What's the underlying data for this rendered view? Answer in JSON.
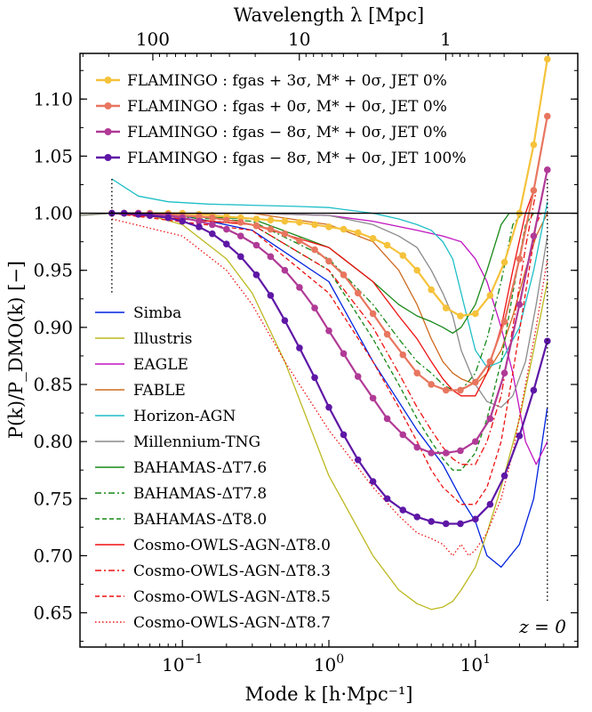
{
  "chart_data": {
    "type": "line",
    "title": "",
    "xlabel": "Mode k [h·Mpc⁻¹]",
    "ylabel": "P(k)/P_DMO(k) [−]",
    "top_xlabel": "Wavelength λ [Mpc]",
    "xscale": "log",
    "xlim": [
      0.02,
      50
    ],
    "ylim": [
      0.62,
      1.14
    ],
    "yticks": [
      "0.65",
      "0.70",
      "0.75",
      "0.80",
      "0.85",
      "0.90",
      "0.95",
      "1.00",
      "1.05",
      "1.10"
    ],
    "xticks": [
      {
        "base": "10",
        "exp": "−1",
        "value": 0.1
      },
      {
        "base": "10",
        "exp": "0",
        "value": 1
      },
      {
        "base": "10",
        "exp": "1",
        "value": 10
      }
    ],
    "top_ticks": [
      {
        "label": "100",
        "lambda": 100
      },
      {
        "label": "10",
        "lambda": 10
      },
      {
        "label": "1",
        "lambda": 1
      }
    ],
    "annotation": "z = 0",
    "reference_line": 1.0,
    "vlines_k": [
      0.033,
      31
    ],
    "legend_top": [
      {
        "label": "FLAMINGO :  fgas + 3σ, M* + 0σ, JET 0%",
        "color": "#f5c23b"
      },
      {
        "label": "FLAMINGO :  fgas + 0σ, M* + 0σ, JET 0%",
        "color": "#e8765f"
      },
      {
        "label": "FLAMINGO :  fgas − 8σ, M* + 0σ, JET 0%",
        "color": "#b03a96"
      },
      {
        "label": "FLAMINGO :  fgas − 8σ, M* + 0σ, JET 100%",
        "color": "#5e17a6"
      }
    ],
    "legend_bottom": [
      {
        "label": "Simba",
        "color": "#0022dd",
        "dash": ""
      },
      {
        "label": "Illustris",
        "color": "#bdb81f",
        "dash": ""
      },
      {
        "label": "EAGLE",
        "color": "#c015c0",
        "dash": ""
      },
      {
        "label": "FABLE",
        "color": "#cf6b1f",
        "dash": ""
      },
      {
        "label": "Horizon-AGN",
        "color": "#1ebec7",
        "dash": ""
      },
      {
        "label": "Millennium-TNG",
        "color": "#8a8a8a",
        "dash": ""
      },
      {
        "label": "BAHAMAS-ΔT7.6",
        "color": "#178817",
        "dash": ""
      },
      {
        "label": "BAHAMAS-ΔT7.8",
        "color": "#178817",
        "dash": "7,3,2,3"
      },
      {
        "label": "BAHAMAS-ΔT8.0",
        "color": "#178817",
        "dash": "5,3"
      },
      {
        "label": "Cosmo-OWLS-AGN-ΔT8.0",
        "color": "#ee1111",
        "dash": ""
      },
      {
        "label": "Cosmo-OWLS-AGN-ΔT8.3",
        "color": "#ee1111",
        "dash": "7,3,2,3"
      },
      {
        "label": "Cosmo-OWLS-AGN-ΔT8.5",
        "color": "#ee1111",
        "dash": "5,3"
      },
      {
        "label": "Cosmo-OWLS-AGN-ΔT8.7",
        "color": "#ee1111",
        "dash": "1.5,2.5"
      }
    ],
    "series": [
      {
        "name": "Simba",
        "color": "#0022dd",
        "dash": "",
        "width": 1.3,
        "x": [
          0.033,
          0.1,
          0.3,
          1,
          2,
          4,
          6,
          8,
          10,
          12,
          15,
          20,
          25,
          31
        ],
        "y": [
          1.0,
          0.998,
          0.985,
          0.94,
          0.87,
          0.81,
          0.78,
          0.75,
          0.73,
          0.7,
          0.69,
          0.71,
          0.75,
          0.83
        ]
      },
      {
        "name": "Illustris",
        "color": "#bdb81f",
        "dash": "",
        "width": 1.3,
        "x": [
          0.02,
          0.033,
          0.06,
          0.1,
          0.2,
          0.3,
          0.5,
          1,
          2,
          3,
          4,
          5,
          6,
          7,
          8,
          10,
          12,
          15,
          20,
          25,
          31
        ],
        "y": [
          0.998,
          1.0,
          0.998,
          0.99,
          0.96,
          0.93,
          0.87,
          0.77,
          0.7,
          0.67,
          0.658,
          0.653,
          0.655,
          0.66,
          0.67,
          0.69,
          0.72,
          0.76,
          0.82,
          0.88,
          0.94
        ]
      },
      {
        "name": "EAGLE",
        "color": "#c015c0",
        "dash": "",
        "width": 1.3,
        "x": [
          0.033,
          0.3,
          1,
          2,
          4,
          6,
          8,
          10,
          12,
          15,
          18,
          22,
          26,
          31
        ],
        "y": [
          1.0,
          1.0,
          0.998,
          0.993,
          0.985,
          0.98,
          0.975,
          0.96,
          0.94,
          0.9,
          0.86,
          0.8,
          0.78,
          0.8
        ]
      },
      {
        "name": "FABLE",
        "color": "#cf6b1f",
        "dash": "",
        "width": 1.3,
        "x": [
          0.033,
          0.3,
          1,
          2,
          3,
          4,
          5,
          6,
          7,
          8,
          10,
          12,
          15,
          18,
          22,
          26,
          31
        ],
        "y": [
          1.0,
          1.0,
          0.99,
          0.975,
          0.95,
          0.92,
          0.89,
          0.87,
          0.86,
          0.855,
          0.85,
          0.86,
          0.88,
          0.91,
          0.95,
          0.98,
          1.0
        ]
      },
      {
        "name": "Horizon-AGN",
        "color": "#1ebec7",
        "dash": "",
        "width": 1.3,
        "x": [
          0.033,
          0.05,
          0.08,
          0.15,
          0.3,
          0.6,
          1,
          2,
          3,
          4,
          5,
          6,
          7,
          8,
          10,
          12,
          15,
          20,
          25,
          31
        ],
        "y": [
          1.03,
          1.015,
          1.01,
          1.008,
          1.007,
          1.006,
          1.005,
          1.0,
          0.995,
          0.99,
          0.985,
          0.975,
          0.96,
          0.93,
          0.88,
          0.865,
          0.87,
          0.9,
          0.95,
          1.01
        ]
      },
      {
        "name": "Millennium-TNG",
        "color": "#8a8a8a",
        "dash": "",
        "width": 1.3,
        "x": [
          0.02,
          0.033,
          0.3,
          1,
          2,
          3,
          4,
          5,
          6,
          7,
          8,
          10,
          12,
          15,
          18,
          22,
          26,
          31
        ],
        "y": [
          0.998,
          1.0,
          1.0,
          0.998,
          0.99,
          0.98,
          0.97,
          0.95,
          0.93,
          0.91,
          0.88,
          0.85,
          0.835,
          0.83,
          0.84,
          0.87,
          0.92,
          0.98
        ]
      },
      {
        "name": "BAHAMAS-ΔT7.6",
        "color": "#178817",
        "dash": "",
        "width": 1.3,
        "x": [
          0.033,
          0.3,
          1,
          2,
          3,
          4,
          5,
          6,
          7,
          8,
          10,
          12,
          15,
          17,
          19
        ],
        "y": [
          1.0,
          0.995,
          0.97,
          0.94,
          0.92,
          0.91,
          0.905,
          0.9,
          0.895,
          0.9,
          0.92,
          0.95,
          0.99,
          1.0,
          1.0
        ]
      },
      {
        "name": "BAHAMAS-ΔT7.8",
        "color": "#178817",
        "dash": "7,3,2,3",
        "width": 1.3,
        "x": [
          0.033,
          0.3,
          1,
          2,
          3,
          4,
          5,
          6,
          7,
          8,
          10,
          12,
          15,
          18,
          21
        ],
        "y": [
          1.0,
          0.993,
          0.96,
          0.92,
          0.89,
          0.87,
          0.86,
          0.85,
          0.845,
          0.845,
          0.86,
          0.89,
          0.94,
          0.99,
          1.0
        ]
      },
      {
        "name": "BAHAMAS-ΔT8.0",
        "color": "#178817",
        "dash": "5,3",
        "width": 1.3,
        "x": [
          0.033,
          0.3,
          1,
          2,
          3,
          4,
          5,
          6,
          7,
          8,
          10,
          12,
          15,
          18,
          22,
          25
        ],
        "y": [
          1.0,
          0.99,
          0.95,
          0.89,
          0.85,
          0.82,
          0.8,
          0.785,
          0.775,
          0.775,
          0.79,
          0.82,
          0.87,
          0.93,
          0.99,
          1.0
        ]
      },
      {
        "name": "Cosmo-OWLS-AGN-ΔT8.0",
        "color": "#ee1111",
        "dash": "",
        "width": 1.3,
        "x": [
          0.033,
          0.3,
          1,
          2,
          3,
          4,
          5,
          6,
          7,
          8,
          10,
          12,
          15,
          18,
          22,
          25
        ],
        "y": [
          1.0,
          0.99,
          0.97,
          0.94,
          0.91,
          0.89,
          0.87,
          0.855,
          0.845,
          0.84,
          0.84,
          0.86,
          0.9,
          0.95,
          1.0,
          1.02
        ]
      },
      {
        "name": "Cosmo-OWLS-AGN-ΔT8.3",
        "color": "#ee1111",
        "dash": "7,3,2,3",
        "width": 1.3,
        "x": [
          0.033,
          0.3,
          1,
          2,
          3,
          4,
          5,
          6,
          7,
          8,
          10,
          12,
          15,
          18,
          22,
          26
        ],
        "y": [
          1.0,
          0.99,
          0.95,
          0.9,
          0.86,
          0.83,
          0.81,
          0.795,
          0.785,
          0.78,
          0.78,
          0.8,
          0.84,
          0.9,
          0.97,
          1.02
        ]
      },
      {
        "name": "Cosmo-OWLS-AGN-ΔT8.5",
        "color": "#ee1111",
        "dash": "5,3",
        "width": 1.3,
        "x": [
          0.033,
          0.3,
          1,
          2,
          3,
          4,
          5,
          6,
          7,
          8,
          10,
          12,
          15,
          18,
          22,
          26,
          28
        ],
        "y": [
          1.0,
          0.985,
          0.93,
          0.87,
          0.83,
          0.8,
          0.775,
          0.76,
          0.752,
          0.745,
          0.745,
          0.76,
          0.8,
          0.86,
          0.93,
          0.99,
          1.0
        ]
      },
      {
        "name": "Cosmo-OWLS-AGN-ΔT8.7",
        "color": "#ee1111",
        "dash": "1.5,2.5",
        "width": 1.3,
        "x": [
          0.033,
          0.1,
          0.2,
          0.3,
          0.5,
          1,
          2,
          3,
          4,
          5,
          6,
          7,
          8,
          9,
          10,
          12,
          15,
          18,
          22,
          26,
          31
        ],
        "y": [
          0.995,
          0.98,
          0.95,
          0.92,
          0.87,
          0.81,
          0.76,
          0.735,
          0.72,
          0.715,
          0.71,
          0.7,
          0.71,
          0.7,
          0.705,
          0.72,
          0.75,
          0.79,
          0.85,
          0.9,
          0.96
        ]
      },
      {
        "name": "FLAMINGO: fgas+3σ, M*+0σ, JET 0%",
        "color": "#f5c23b",
        "dash": "",
        "width": 2.2,
        "markers": true,
        "x": [
          0.033,
          0.04,
          0.05,
          0.06,
          0.08,
          0.1,
          0.13,
          0.16,
          0.2,
          0.25,
          0.32,
          0.4,
          0.5,
          0.63,
          0.8,
          1.0,
          1.26,
          1.58,
          2.0,
          2.5,
          3.2,
          4.0,
          5.0,
          6.3,
          7.9,
          10,
          12.6,
          15.8,
          20,
          25,
          31
        ],
        "y": [
          1.0,
          1.0,
          1.0,
          1.0,
          1.0,
          1.0,
          0.999,
          0.998,
          0.997,
          0.996,
          0.995,
          0.994,
          0.993,
          0.992,
          0.99,
          0.988,
          0.986,
          0.983,
          0.978,
          0.972,
          0.963,
          0.95,
          0.933,
          0.917,
          0.91,
          0.912,
          0.928,
          0.957,
          1.0,
          1.06,
          1.135
        ]
      },
      {
        "name": "FLAMINGO: fgas+0σ, M*+0σ, JET 0%",
        "color": "#e8765f",
        "dash": "",
        "width": 2.2,
        "markers": true,
        "x": [
          0.033,
          0.04,
          0.05,
          0.06,
          0.08,
          0.1,
          0.13,
          0.16,
          0.2,
          0.25,
          0.32,
          0.4,
          0.5,
          0.63,
          0.8,
          1.0,
          1.26,
          1.58,
          2.0,
          2.5,
          3.2,
          4.0,
          5.0,
          6.3,
          7.9,
          10,
          12.6,
          15.8,
          20,
          25,
          31
        ],
        "y": [
          1.0,
          1.0,
          1.0,
          1.0,
          0.999,
          0.998,
          0.997,
          0.996,
          0.994,
          0.992,
          0.989,
          0.986,
          0.982,
          0.976,
          0.968,
          0.958,
          0.946,
          0.93,
          0.912,
          0.894,
          0.876,
          0.86,
          0.85,
          0.845,
          0.845,
          0.852,
          0.87,
          0.905,
          0.96,
          1.02,
          1.085
        ]
      },
      {
        "name": "FLAMINGO: fgas−8σ, M*+0σ, JET 0%",
        "color": "#b03a96",
        "dash": "",
        "width": 2.2,
        "markers": true,
        "x": [
          0.033,
          0.04,
          0.05,
          0.06,
          0.08,
          0.1,
          0.13,
          0.16,
          0.2,
          0.25,
          0.32,
          0.4,
          0.5,
          0.63,
          0.8,
          1.0,
          1.26,
          1.58,
          2.0,
          2.5,
          3.2,
          4.0,
          5.0,
          6.3,
          7.9,
          10,
          12.6,
          15.8,
          20,
          25,
          31
        ],
        "y": [
          1.0,
          1.0,
          1.0,
          0.999,
          0.998,
          0.996,
          0.993,
          0.99,
          0.986,
          0.98,
          0.972,
          0.962,
          0.95,
          0.935,
          0.917,
          0.897,
          0.877,
          0.857,
          0.838,
          0.82,
          0.806,
          0.795,
          0.79,
          0.79,
          0.792,
          0.8,
          0.82,
          0.86,
          0.92,
          0.98,
          1.038
        ]
      },
      {
        "name": "FLAMINGO: fgas−8σ, M*+0σ, JET 100%",
        "color": "#5e17a6",
        "dash": "",
        "width": 2.2,
        "markers": true,
        "x": [
          0.033,
          0.04,
          0.05,
          0.06,
          0.08,
          0.1,
          0.13,
          0.16,
          0.2,
          0.25,
          0.32,
          0.4,
          0.5,
          0.63,
          0.8,
          1.0,
          1.26,
          1.58,
          2.0,
          2.5,
          3.2,
          4.0,
          5.0,
          6.3,
          7.9,
          10,
          12.6,
          15.8,
          20,
          25,
          31
        ],
        "y": [
          1.0,
          1.0,
          0.999,
          0.998,
          0.996,
          0.993,
          0.988,
          0.982,
          0.973,
          0.962,
          0.946,
          0.928,
          0.906,
          0.882,
          0.856,
          0.83,
          0.806,
          0.784,
          0.765,
          0.75,
          0.74,
          0.734,
          0.73,
          0.728,
          0.728,
          0.732,
          0.745,
          0.77,
          0.805,
          0.845,
          0.888
        ]
      }
    ]
  }
}
